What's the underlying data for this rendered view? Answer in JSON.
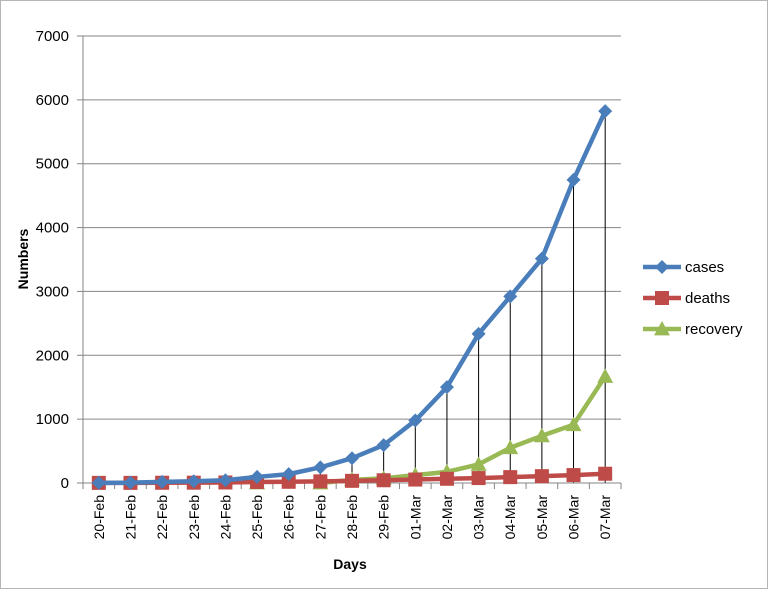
{
  "chart_data": {
    "type": "line",
    "title": "",
    "xlabel": "Days",
    "ylabel": "Numbers",
    "ylim": [
      0,
      7000
    ],
    "yticks": [
      "0",
      "1000",
      "2000",
      "3000",
      "4000",
      "5000",
      "6000",
      "7000"
    ],
    "categories": [
      "20-Feb",
      "21-Feb",
      "22-Feb",
      "23-Feb",
      "24-Feb",
      "25-Feb",
      "26-Feb",
      "27-Feb",
      "28-Feb",
      "29-Feb",
      "01-Mar",
      "02-Mar",
      "03-Mar",
      "04-Mar",
      "05-Mar",
      "06-Mar",
      "07-Mar"
    ],
    "grid": true,
    "legend_position": "right",
    "drop_lines": true,
    "series": [
      {
        "name": "cases",
        "color": "#4a7ebb",
        "marker": "diamond",
        "values": [
          2,
          5,
          18,
          28,
          43,
          95,
          139,
          245,
          388,
          593,
          978,
          1501,
          2336,
          2922,
          3513,
          4747,
          5823
        ]
      },
      {
        "name": "deaths",
        "color": "#be4b48",
        "marker": "square",
        "values": [
          2,
          2,
          4,
          5,
          8,
          16,
          19,
          26,
          34,
          43,
          54,
          66,
          77,
          92,
          107,
          124,
          145
        ]
      },
      {
        "name": "recovery",
        "color": "#98b954",
        "marker": "triangle",
        "values": [
          null,
          null,
          null,
          null,
          null,
          0,
          null,
          0,
          49,
          73,
          123,
          175,
          291,
          552,
          739,
          913,
          1669
        ]
      }
    ]
  }
}
